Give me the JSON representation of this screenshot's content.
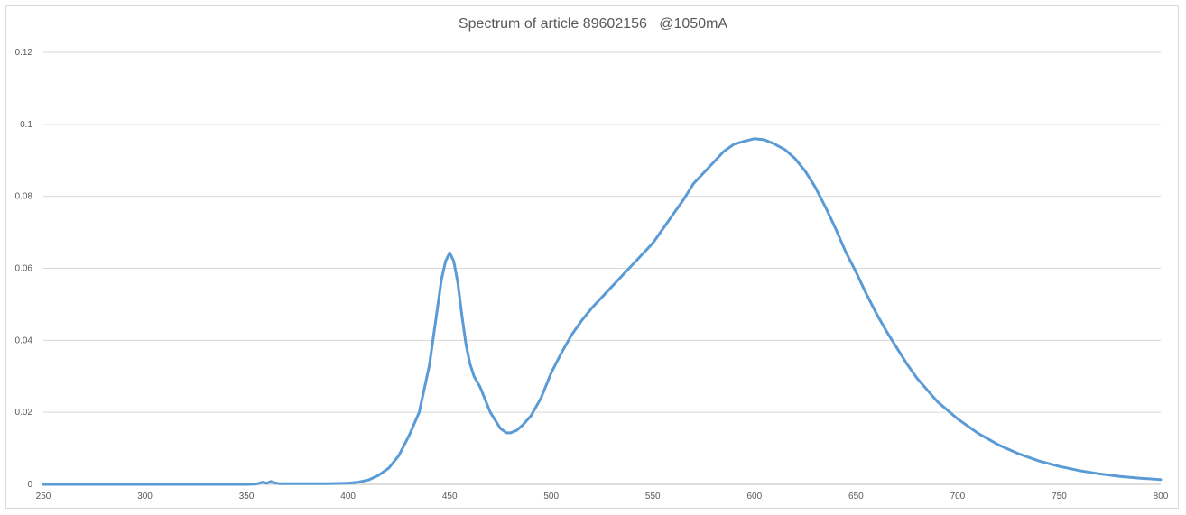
{
  "chart_data": {
    "type": "line",
    "title": "Spectrum of article 89602156   @1050mA",
    "xlabel": "",
    "ylabel": "",
    "xlim": [
      250,
      800
    ],
    "ylim": [
      0,
      0.12
    ],
    "x_ticks": [
      250,
      300,
      350,
      400,
      450,
      500,
      550,
      600,
      650,
      700,
      750,
      800
    ],
    "x_tick_labels": [
      "250",
      "300",
      "350",
      "400",
      "450",
      "500",
      "550",
      "600",
      "650",
      "700",
      "750",
      "800"
    ],
    "y_ticks": [
      0,
      0.02,
      0.04,
      0.06,
      0.08,
      0.1,
      0.12
    ],
    "y_tick_labels": [
      "0",
      "0.02",
      "0.04",
      "0.06",
      "0.08",
      "0.1",
      "0.12"
    ],
    "grid": "horizontal",
    "legend": "none",
    "series": [
      {
        "color": "#5b9bd5",
        "x": [
          250,
          300,
          350,
          355,
          358,
          360,
          362,
          364,
          366,
          370,
          380,
          390,
          400,
          405,
          410,
          415,
          420,
          425,
          430,
          435,
          440,
          443,
          446,
          448,
          450,
          452,
          454,
          456,
          458,
          460,
          462,
          465,
          470,
          475,
          478,
          480,
          483,
          486,
          490,
          495,
          500,
          505,
          510,
          515,
          520,
          525,
          530,
          540,
          550,
          555,
          560,
          565,
          570,
          575,
          580,
          585,
          590,
          595,
          600,
          605,
          610,
          615,
          620,
          625,
          630,
          635,
          640,
          645,
          650,
          655,
          660,
          665,
          670,
          675,
          680,
          690,
          700,
          710,
          720,
          730,
          740,
          750,
          760,
          770,
          780,
          790,
          800
        ],
        "values": [
          0,
          0,
          0,
          0.0001,
          0.0006,
          0.0003,
          0.0008,
          0.0004,
          0.0002,
          0.0002,
          0.0002,
          0.0002,
          0.0003,
          0.0006,
          0.0012,
          0.0025,
          0.0045,
          0.008,
          0.0135,
          0.02,
          0.033,
          0.045,
          0.057,
          0.062,
          0.0643,
          0.062,
          0.056,
          0.047,
          0.039,
          0.0335,
          0.03,
          0.027,
          0.02,
          0.0155,
          0.0143,
          0.0143,
          0.015,
          0.0165,
          0.019,
          0.024,
          0.031,
          0.0365,
          0.0415,
          0.0455,
          0.049,
          0.052,
          0.055,
          0.061,
          0.067,
          0.071,
          0.075,
          0.079,
          0.0835,
          0.0865,
          0.0895,
          0.0925,
          0.0945,
          0.0953,
          0.096,
          0.0957,
          0.0945,
          0.093,
          0.0905,
          0.087,
          0.0825,
          0.077,
          0.071,
          0.0645,
          0.059,
          0.053,
          0.0475,
          0.0425,
          0.038,
          0.0335,
          0.0295,
          0.023,
          0.0182,
          0.0142,
          0.011,
          0.0085,
          0.0065,
          0.005,
          0.0038,
          0.0029,
          0.0022,
          0.0017,
          0.0013
        ]
      }
    ]
  }
}
